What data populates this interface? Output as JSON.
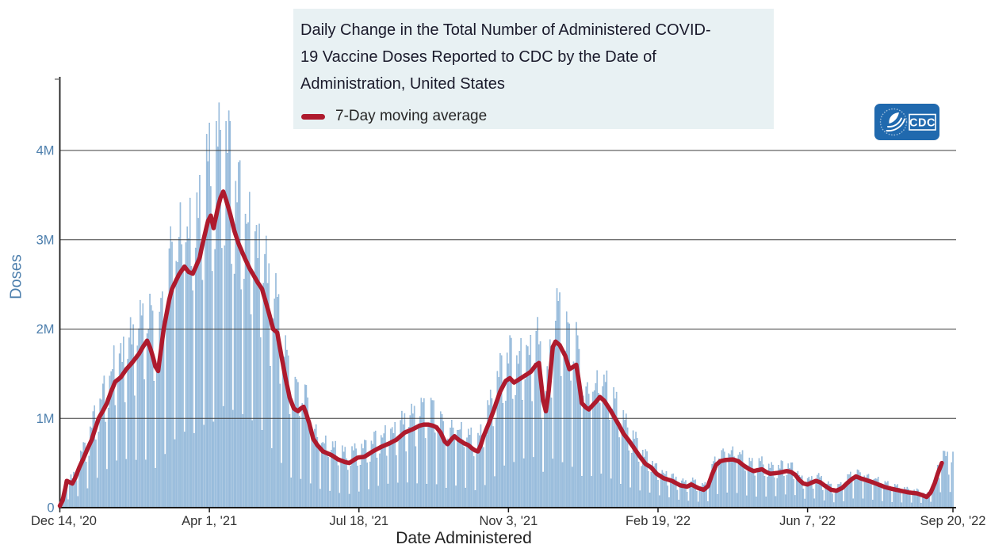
{
  "header": {
    "title_lines": [
      "Daily Change in the Total Number of Administered COVID-",
      "19 Vaccine Doses Reported to CDC by the Date of",
      "Administration, United States"
    ],
    "legend": {
      "label": "7-Day moving average",
      "swatch_color": "#ae1a2d"
    }
  },
  "logo": {
    "text": "CDC",
    "bg_color": "#2069ae"
  },
  "axes": {
    "x": {
      "title": "Date Administered"
    },
    "y": {
      "title": "Doses"
    }
  },
  "colors": {
    "bar_fill": "#a4c4e1",
    "bar_edge": "#79a7cf",
    "ma_line": "#ae1a2d",
    "grid": "#3d3d3d",
    "axis": "#1a1a1a",
    "y_tick_label": "#4d7fad",
    "x_tick_label": "#333333",
    "title_box_bg": "#e8f1f3"
  },
  "chart_data": {
    "type": "bar",
    "title": "Daily Change in the Total Number of Administered COVID-19 Vaccine Doses Reported to CDC by the Date of Administration, United States",
    "xlabel": "Date Administered",
    "ylabel": "Doses",
    "unit": "million doses",
    "ylim": [
      0,
      4.8
    ],
    "grid": "horizontal",
    "legend_position": "top-left-in-title-box",
    "x_start_date": "Dec 14, '20",
    "x_end_date": "Sep 20, '22",
    "total_days": 645,
    "x_ticks": [
      {
        "label": "Dec 14, '20",
        "day": 0
      },
      {
        "label": "Apr 1, '21",
        "day": 108
      },
      {
        "label": "Jul 18, '21",
        "day": 216
      },
      {
        "label": "Nov 3, '21",
        "day": 324
      },
      {
        "label": "Feb 19, '22",
        "day": 432
      },
      {
        "label": "Jun 7, '22",
        "day": 540
      },
      {
        "label": "Sep 20, '22",
        "day": 645
      }
    ],
    "y_ticks": [
      {
        "label": "0",
        "value": 0
      },
      {
        "label": "1M",
        "value": 1
      },
      {
        "label": "2M",
        "value": 2
      },
      {
        "label": "3M",
        "value": 3
      },
      {
        "label": "4M",
        "value": 4
      }
    ],
    "series": [
      {
        "name": "Daily administered doses (bars)",
        "type": "bar"
      },
      {
        "name": "7-Day moving average",
        "type": "line"
      }
    ],
    "ma_peak_value": 3.54,
    "max_daily_bar": 4.59,
    "ma_anchors": [
      [
        0,
        0.02
      ],
      [
        2,
        0.08
      ],
      [
        4,
        0.22
      ],
      [
        5,
        0.3
      ],
      [
        7,
        0.285
      ],
      [
        9,
        0.27
      ],
      [
        11,
        0.33
      ],
      [
        14,
        0.45
      ],
      [
        17,
        0.55
      ],
      [
        20,
        0.66
      ],
      [
        23,
        0.76
      ],
      [
        25,
        0.86
      ],
      [
        28,
        1.0
      ],
      [
        31,
        1.08
      ],
      [
        34,
        1.17
      ],
      [
        37,
        1.3
      ],
      [
        40,
        1.41
      ],
      [
        44,
        1.46
      ],
      [
        48,
        1.55
      ],
      [
        52,
        1.62
      ],
      [
        57,
        1.72
      ],
      [
        60,
        1.8
      ],
      [
        63,
        1.87
      ],
      [
        65,
        1.8
      ],
      [
        67,
        1.7
      ],
      [
        69,
        1.58
      ],
      [
        71,
        1.53
      ],
      [
        75,
        2.0
      ],
      [
        79,
        2.33
      ],
      [
        81,
        2.45
      ],
      [
        86,
        2.61
      ],
      [
        90,
        2.7
      ],
      [
        93,
        2.64
      ],
      [
        96,
        2.62
      ],
      [
        98,
        2.69
      ],
      [
        101,
        2.8
      ],
      [
        103,
        2.95
      ],
      [
        105,
        3.08
      ],
      [
        107,
        3.21
      ],
      [
        109,
        3.27
      ],
      [
        111,
        3.13
      ],
      [
        114,
        3.35
      ],
      [
        116,
        3.47
      ],
      [
        118,
        3.54
      ],
      [
        120,
        3.45
      ],
      [
        123,
        3.29
      ],
      [
        126,
        3.1
      ],
      [
        129,
        2.96
      ],
      [
        132,
        2.85
      ],
      [
        134,
        2.78
      ],
      [
        137,
        2.68
      ],
      [
        140,
        2.6
      ],
      [
        143,
        2.52
      ],
      [
        146,
        2.45
      ],
      [
        151,
        2.18
      ],
      [
        154,
        2.0
      ],
      [
        157,
        1.96
      ],
      [
        160,
        1.7
      ],
      [
        163,
        1.45
      ],
      [
        166,
        1.23
      ],
      [
        169,
        1.11
      ],
      [
        172,
        1.08
      ],
      [
        174,
        1.11
      ],
      [
        176,
        1.13
      ],
      [
        178,
        1.05
      ],
      [
        180,
        0.95
      ],
      [
        183,
        0.77
      ],
      [
        186,
        0.7
      ],
      [
        190,
        0.63
      ],
      [
        196,
        0.59
      ],
      [
        201,
        0.54
      ],
      [
        206,
        0.51
      ],
      [
        209,
        0.5
      ],
      [
        212,
        0.53
      ],
      [
        215,
        0.56
      ],
      [
        220,
        0.57
      ],
      [
        226,
        0.63
      ],
      [
        232,
        0.68
      ],
      [
        238,
        0.72
      ],
      [
        243,
        0.76
      ],
      [
        249,
        0.84
      ],
      [
        255,
        0.88
      ],
      [
        260,
        0.92
      ],
      [
        263,
        0.93
      ],
      [
        266,
        0.93
      ],
      [
        269,
        0.92
      ],
      [
        272,
        0.9
      ],
      [
        275,
        0.84
      ],
      [
        278,
        0.74
      ],
      [
        280,
        0.71
      ],
      [
        283,
        0.77
      ],
      [
        285,
        0.8
      ],
      [
        288,
        0.76
      ],
      [
        292,
        0.72
      ],
      [
        295,
        0.7
      ],
      [
        298,
        0.66
      ],
      [
        300,
        0.64
      ],
      [
        302,
        0.63
      ],
      [
        304,
        0.7
      ],
      [
        306,
        0.8
      ],
      [
        310,
        0.95
      ],
      [
        314,
        1.12
      ],
      [
        318,
        1.3
      ],
      [
        322,
        1.42
      ],
      [
        325,
        1.45
      ],
      [
        328,
        1.4
      ],
      [
        332,
        1.44
      ],
      [
        336,
        1.48
      ],
      [
        340,
        1.52
      ],
      [
        344,
        1.6
      ],
      [
        346,
        1.62
      ],
      [
        349,
        1.2
      ],
      [
        351,
        1.08
      ],
      [
        353,
        1.3
      ],
      [
        356,
        1.8
      ],
      [
        358,
        1.86
      ],
      [
        361,
        1.82
      ],
      [
        365,
        1.7
      ],
      [
        368,
        1.55
      ],
      [
        371,
        1.58
      ],
      [
        373,
        1.6
      ],
      [
        375,
        1.4
      ],
      [
        377,
        1.17
      ],
      [
        380,
        1.12
      ],
      [
        382,
        1.1
      ],
      [
        385,
        1.15
      ],
      [
        388,
        1.2
      ],
      [
        390,
        1.24
      ],
      [
        393,
        1.2
      ],
      [
        396,
        1.13
      ],
      [
        398,
        1.08
      ],
      [
        401,
        1.0
      ],
      [
        404,
        0.92
      ],
      [
        407,
        0.83
      ],
      [
        411,
        0.75
      ],
      [
        415,
        0.66
      ],
      [
        419,
        0.57
      ],
      [
        423,
        0.49
      ],
      [
        427,
        0.45
      ],
      [
        431,
        0.38
      ],
      [
        436,
        0.33
      ],
      [
        442,
        0.3
      ],
      [
        448,
        0.25
      ],
      [
        453,
        0.235
      ],
      [
        456,
        0.26
      ],
      [
        461,
        0.22
      ],
      [
        465,
        0.2
      ],
      [
        468,
        0.24
      ],
      [
        471,
        0.37
      ],
      [
        474,
        0.48
      ],
      [
        477,
        0.52
      ],
      [
        481,
        0.535
      ],
      [
        486,
        0.54
      ],
      [
        490,
        0.52
      ],
      [
        494,
        0.47
      ],
      [
        498,
        0.43
      ],
      [
        501,
        0.41
      ],
      [
        504,
        0.42
      ],
      [
        507,
        0.43
      ],
      [
        510,
        0.4
      ],
      [
        513,
        0.38
      ],
      [
        516,
        0.385
      ],
      [
        519,
        0.39
      ],
      [
        522,
        0.4
      ],
      [
        525,
        0.41
      ],
      [
        528,
        0.4
      ],
      [
        531,
        0.37
      ],
      [
        534,
        0.31
      ],
      [
        537,
        0.27
      ],
      [
        540,
        0.26
      ],
      [
        543,
        0.28
      ],
      [
        546,
        0.3
      ],
      [
        549,
        0.285
      ],
      [
        553,
        0.24
      ],
      [
        557,
        0.2
      ],
      [
        561,
        0.19
      ],
      [
        565,
        0.22
      ],
      [
        569,
        0.28
      ],
      [
        572,
        0.32
      ],
      [
        575,
        0.35
      ],
      [
        578,
        0.33
      ],
      [
        582,
        0.31
      ],
      [
        586,
        0.29
      ],
      [
        591,
        0.26
      ],
      [
        596,
        0.23
      ],
      [
        601,
        0.21
      ],
      [
        607,
        0.19
      ],
      [
        613,
        0.17
      ],
      [
        619,
        0.16
      ],
      [
        623,
        0.14
      ],
      [
        626,
        0.12
      ],
      [
        629,
        0.17
      ],
      [
        632,
        0.28
      ],
      [
        634,
        0.38
      ],
      [
        636,
        0.46
      ],
      [
        637,
        0.5
      ]
    ],
    "ma_line_last_day": 637,
    "bar_synthesis": {
      "comment": "daily bars = moving_average(day) * weekly[day%7] * (1+noise), day 0 = Monday Dec 14 2020",
      "weekly": [
        1.0,
        1.18,
        1.25,
        1.3,
        1.22,
        0.86,
        0.32
      ],
      "noise": [
        0.1,
        2.63,
        0.07,
        0.77,
        1.3
      ],
      "bar_cap_ratio": 1.33,
      "bar_cap_abs": 4.62
    }
  }
}
